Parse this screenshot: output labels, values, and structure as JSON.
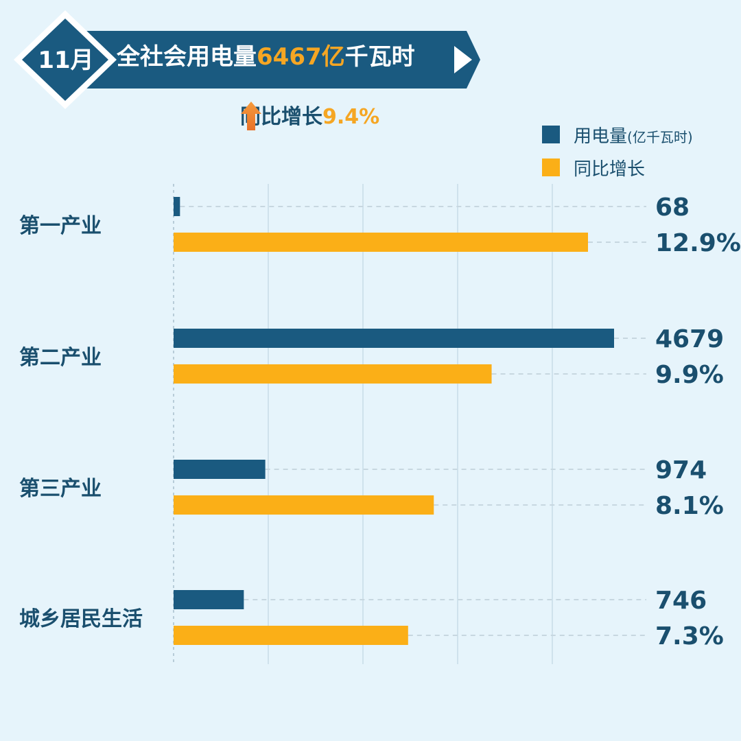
{
  "header": {
    "month": "11月",
    "title_prefix": "全社会用电量",
    "title_value": "6467亿",
    "title_suffix": "千瓦时",
    "growth_label": "同比增长",
    "growth_value": "9.4%"
  },
  "legend": {
    "items": [
      {
        "label": "用电量",
        "unit": "(亿千瓦时)",
        "color": "#1a5a80"
      },
      {
        "label": "同比增长",
        "unit": "",
        "color": "#fbaf17"
      }
    ]
  },
  "colors": {
    "background": "#e6f4fb",
    "consumption": "#1a5a80",
    "growth": "#fbaf17",
    "banner": "#1a5a80",
    "accent": "#f5a623",
    "text": "#1a4f6e"
  },
  "chart_data": {
    "type": "bar",
    "orientation": "horizontal",
    "categories": [
      "第一产业",
      "第二产业",
      "第三产业",
      "城乡居民生活"
    ],
    "series": [
      {
        "name": "用电量",
        "unit": "亿千瓦时",
        "values": [
          68,
          4679,
          974,
          746
        ],
        "labels": [
          "68",
          "4679",
          "974",
          "746"
        ]
      },
      {
        "name": "同比增长",
        "unit": "%",
        "values": [
          12.9,
          9.9,
          8.1,
          7.3
        ],
        "labels": [
          "12.9%",
          "9.9%",
          "8.1%",
          "7.3%"
        ]
      }
    ],
    "consumption_max": 4679,
    "growth_max": 12.9,
    "grid": true,
    "legend_position": "top-right"
  }
}
